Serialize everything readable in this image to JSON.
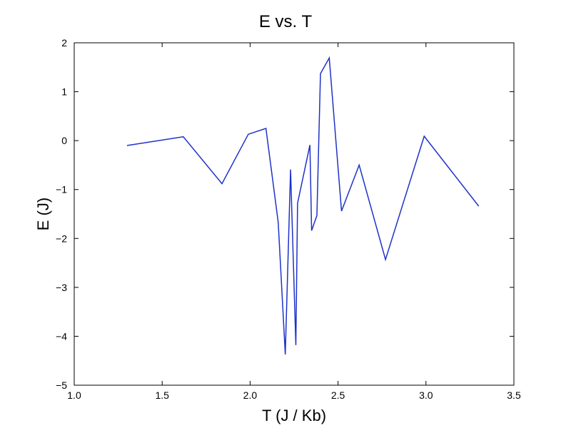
{
  "chart_data": {
    "type": "line",
    "title": "E vs. T",
    "xlabel": "T (J / Kb)",
    "ylabel": "E (J)",
    "xlim": [
      1.0,
      3.5
    ],
    "ylim": [
      -5,
      2
    ],
    "xticks": [
      1.0,
      1.5,
      2.0,
      2.5,
      3.0,
      3.5
    ],
    "xtick_labels": [
      "1.0",
      "1.5",
      "2.0",
      "2.5",
      "3.0",
      "3.5"
    ],
    "yticks": [
      2,
      1,
      0,
      -1,
      -2,
      -3,
      -4,
      -5
    ],
    "ytick_labels": [
      "2",
      "1",
      "0",
      "−1",
      "−2",
      "−3",
      "−4",
      "−5"
    ],
    "grid": false,
    "line_color": "#1f32c8",
    "series": [
      {
        "x": [
          1.3,
          1.62,
          1.84,
          1.99,
          2.09,
          2.16,
          2.2,
          2.23,
          2.26,
          2.27,
          2.34,
          2.35,
          2.38,
          2.4,
          2.45,
          2.52,
          2.62,
          2.77,
          2.99,
          3.3
        ],
        "y": [
          -0.1,
          0.08,
          -0.88,
          0.13,
          0.25,
          -1.67,
          -4.37,
          -0.59,
          -4.18,
          -1.28,
          -0.09,
          -1.84,
          -1.53,
          1.37,
          1.69,
          -1.44,
          -0.5,
          -2.43,
          0.09,
          -1.34
        ]
      }
    ]
  }
}
